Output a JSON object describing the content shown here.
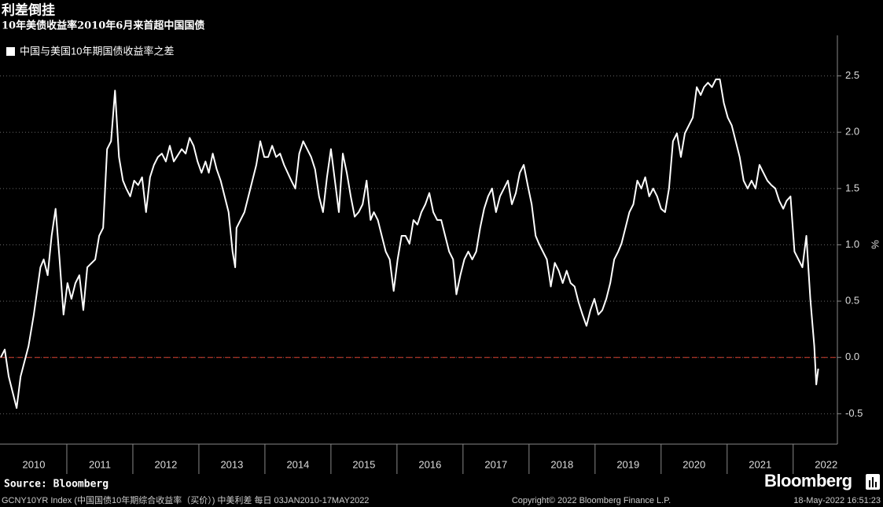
{
  "chart_data": {
    "type": "line",
    "title": "利差倒挂",
    "subtitle": "10年美债收益率2010年6月来首超中国国债",
    "y_label": "%",
    "xlim": [
      2010,
      2022.67
    ],
    "ylim": [
      -0.77,
      2.86
    ],
    "xticks": [
      {
        "value": 2010.5,
        "label": "2010"
      },
      {
        "value": 2011.5,
        "label": "2011"
      },
      {
        "value": 2012.5,
        "label": "2012"
      },
      {
        "value": 2013.5,
        "label": "2013"
      },
      {
        "value": 2014.5,
        "label": "2014"
      },
      {
        "value": 2015.5,
        "label": "2015"
      },
      {
        "value": 2016.5,
        "label": "2016"
      },
      {
        "value": 2017.5,
        "label": "2017"
      },
      {
        "value": 2018.5,
        "label": "2018"
      },
      {
        "value": 2019.5,
        "label": "2019"
      },
      {
        "value": 2020.5,
        "label": "2020"
      },
      {
        "value": 2021.5,
        "label": "2021"
      },
      {
        "value": 2022.5,
        "label": "2022"
      }
    ],
    "yticks": [
      -0.5,
      {
        "value": 0,
        "label": "0.0"
      },
      0.5,
      {
        "value": 1,
        "label": "1.0"
      },
      1.5,
      {
        "value": 2,
        "label": "2.0"
      },
      2.5
    ],
    "grid": true,
    "legend": "top-left",
    "x": [
      2010.0,
      2010.06,
      2010.12,
      2010.24,
      2010.3,
      2010.42,
      2010.5,
      2010.6,
      2010.65,
      2010.71,
      2010.77,
      2010.83,
      2010.89,
      2010.95,
      2011.01,
      2011.07,
      2011.13,
      2011.19,
      2011.25,
      2011.31,
      2011.43,
      2011.49,
      2011.55,
      2011.61,
      2011.67,
      2011.73,
      2011.79,
      2011.85,
      2011.9,
      2011.96,
      2012.02,
      2012.08,
      2012.14,
      2012.2,
      2012.26,
      2012.32,
      2012.38,
      2012.44,
      2012.5,
      2012.56,
      2012.62,
      2012.74,
      2012.8,
      2012.86,
      2012.92,
      2012.98,
      2013.04,
      2013.1,
      2013.15,
      2013.21,
      2013.27,
      2013.33,
      2013.39,
      2013.45,
      2013.51,
      2013.55,
      2013.57,
      2013.63,
      2013.69,
      2013.75,
      2013.81,
      2013.87,
      2013.93,
      2013.99,
      2014.05,
      2014.11,
      2014.17,
      2014.23,
      2014.29,
      2014.4,
      2014.46,
      2014.52,
      2014.58,
      2014.64,
      2014.7,
      2014.76,
      2014.82,
      2014.88,
      2014.94,
      2015.0,
      2015.06,
      2015.12,
      2015.18,
      2015.24,
      2015.3,
      2015.36,
      2015.42,
      2015.48,
      2015.54,
      2015.6,
      2015.65,
      2015.71,
      2015.77,
      2015.83,
      2015.89,
      2015.95,
      2016.01,
      2016.07,
      2016.13,
      2016.19,
      2016.25,
      2016.31,
      2016.37,
      2016.43,
      2016.49,
      2016.55,
      2016.61,
      2016.67,
      2016.73,
      2016.79,
      2016.85,
      2016.9,
      2016.96,
      2017.02,
      2017.08,
      2017.14,
      2017.2,
      2017.26,
      2017.32,
      2017.38,
      2017.44,
      2017.5,
      2017.56,
      2017.62,
      2017.68,
      2017.74,
      2017.8,
      2017.86,
      2017.92,
      2017.98,
      2018.04,
      2018.1,
      2018.15,
      2018.21,
      2018.27,
      2018.33,
      2018.39,
      2018.45,
      2018.51,
      2018.57,
      2018.63,
      2018.69,
      2018.75,
      2018.81,
      2018.87,
      2018.93,
      2018.99,
      2019.05,
      2019.11,
      2019.17,
      2019.23,
      2019.29,
      2019.35,
      2019.4,
      2019.46,
      2019.52,
      2019.58,
      2019.64,
      2019.7,
      2019.76,
      2019.82,
      2019.88,
      2019.94,
      2020.0,
      2020.06,
      2020.12,
      2020.18,
      2020.24,
      2020.3,
      2020.36,
      2020.42,
      2020.48,
      2020.54,
      2020.6,
      2020.65,
      2020.71,
      2020.77,
      2020.83,
      2020.89,
      2020.95,
      2021.01,
      2021.07,
      2021.13,
      2021.19,
      2021.25,
      2021.31,
      2021.37,
      2021.43,
      2021.49,
      2021.55,
      2021.61,
      2021.67,
      2021.73,
      2021.79,
      2021.85,
      2021.9,
      2021.96,
      2022.02,
      2022.08,
      2022.14,
      2022.2,
      2022.26,
      2022.32,
      2022.35,
      2022.38
    ],
    "series": [
      {
        "name": "中国与美国10年期国债收益率之差",
        "color": "#ffffff",
        "values": [
          0.0,
          0.07,
          -0.17,
          -0.45,
          -0.17,
          0.1,
          0.38,
          0.8,
          0.87,
          0.73,
          1.08,
          1.32,
          0.87,
          0.38,
          0.66,
          0.52,
          0.66,
          0.73,
          0.42,
          0.8,
          0.87,
          1.08,
          1.15,
          1.85,
          1.92,
          2.37,
          1.78,
          1.57,
          1.5,
          1.43,
          1.57,
          1.53,
          1.6,
          1.29,
          1.6,
          1.71,
          1.78,
          1.81,
          1.74,
          1.88,
          1.74,
          1.85,
          1.81,
          1.95,
          1.88,
          1.74,
          1.64,
          1.74,
          1.64,
          1.81,
          1.67,
          1.57,
          1.43,
          1.29,
          0.94,
          0.8,
          1.15,
          1.22,
          1.29,
          1.43,
          1.57,
          1.71,
          1.92,
          1.78,
          1.78,
          1.88,
          1.78,
          1.81,
          1.71,
          1.57,
          1.5,
          1.81,
          1.92,
          1.85,
          1.78,
          1.67,
          1.43,
          1.29,
          1.6,
          1.85,
          1.57,
          1.29,
          1.81,
          1.64,
          1.43,
          1.25,
          1.29,
          1.36,
          1.57,
          1.22,
          1.29,
          1.22,
          1.08,
          0.94,
          0.87,
          0.59,
          0.87,
          1.08,
          1.08,
          1.01,
          1.22,
          1.18,
          1.29,
          1.36,
          1.46,
          1.29,
          1.22,
          1.22,
          1.08,
          0.94,
          0.87,
          0.56,
          0.73,
          0.87,
          0.94,
          0.87,
          0.94,
          1.15,
          1.32,
          1.43,
          1.5,
          1.29,
          1.43,
          1.5,
          1.57,
          1.36,
          1.46,
          1.64,
          1.71,
          1.53,
          1.36,
          1.08,
          1.01,
          0.94,
          0.87,
          0.63,
          0.84,
          0.77,
          0.66,
          0.77,
          0.66,
          0.63,
          0.49,
          0.38,
          0.28,
          0.42,
          0.52,
          0.38,
          0.42,
          0.52,
          0.66,
          0.87,
          0.94,
          1.01,
          1.15,
          1.29,
          1.36,
          1.57,
          1.5,
          1.6,
          1.43,
          1.5,
          1.43,
          1.32,
          1.29,
          1.5,
          1.92,
          1.99,
          1.78,
          1.99,
          2.06,
          2.13,
          2.4,
          2.33,
          2.4,
          2.44,
          2.4,
          2.47,
          2.47,
          2.26,
          2.13,
          2.06,
          1.92,
          1.78,
          1.57,
          1.5,
          1.57,
          1.5,
          1.71,
          1.64,
          1.57,
          1.53,
          1.5,
          1.39,
          1.32,
          1.39,
          1.43,
          0.94,
          0.87,
          0.8,
          1.08,
          0.52,
          0.1,
          -0.24,
          -0.1
        ]
      }
    ]
  },
  "footer": {
    "source": "Source: Bloomberg",
    "logo": "Bloomberg",
    "description": "GCNY10YR Index (中国国债10年期综合收益率（买价）) 中美利差   每日 03JAN2010-17MAY2022",
    "copyright": "Copyright© 2022 Bloomberg Finance L.P.",
    "timestamp": "18-May-2022 16:51:23"
  }
}
